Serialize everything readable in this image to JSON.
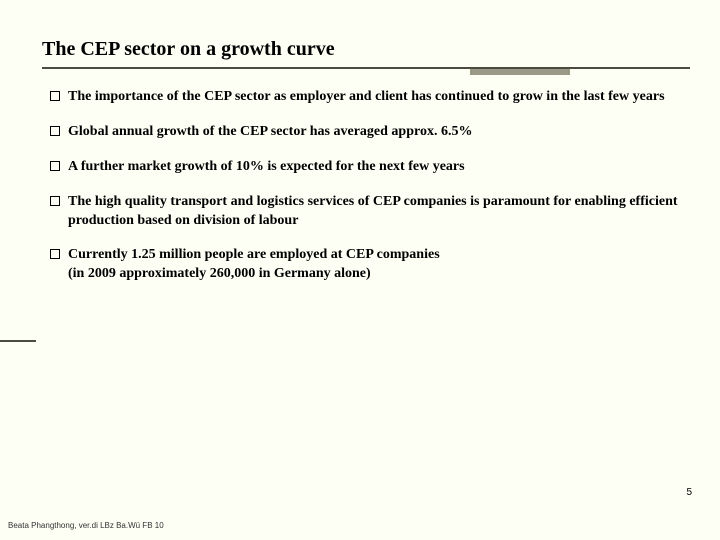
{
  "title": "The CEP sector on a growth curve",
  "bullets": [
    "The importance of the CEP sector as employer and client has continued to grow in the last few years",
    " Global annual growth of the CEP sector has averaged approx. 6.5%",
    " A further market growth of 10% is expected for the next few years",
    " The high quality transport and logistics services of CEP companies is paramount for enabling efficient production based on division of labour",
    "Currently 1.25 million people are employed at CEP companies\n(in 2009 approximately 260,000 in Germany alone)"
  ],
  "page_number": "5",
  "footer": "Beata Phangthong, ver.di LBz Ba.Wü FB 10",
  "colors": {
    "background": "#fdfef4",
    "underline": "#4b4b3f",
    "accent": "#9a9986"
  }
}
